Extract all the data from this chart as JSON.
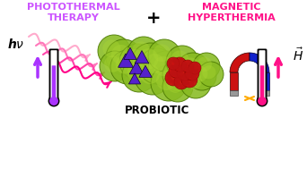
{
  "bg_color": "#ffffff",
  "title_left": "PHOTOTHERMAL\nTHERAPY",
  "title_right": "MAGNETIC\nHYPERTHERMIA",
  "title_left_color": "#cc55ff",
  "title_right_color": "#ff1188",
  "plus_color": "#000000",
  "hv_color": "#000000",
  "H_color": "#000000",
  "probiotic_label": "PROBIOTIC",
  "probiotic_color": "#000000",
  "bacteria_fill": "#88bb22",
  "bacteria_fill2": "#aad633",
  "bacteria_edge": "#4a7800",
  "gold_np_color": "#cc1111",
  "mag_np_color": "#5522cc",
  "wave_colors": [
    "#ffaacc",
    "#ff77bb",
    "#ff44aa",
    "#ff0088"
  ],
  "thermo_left_color": "#aa33ff",
  "thermo_right_color": "#ff1188",
  "magnet_red": "#cc1111",
  "magnet_blue": "#1122cc",
  "magnet_silver": "#999999",
  "spark_color": "#ffaa00"
}
